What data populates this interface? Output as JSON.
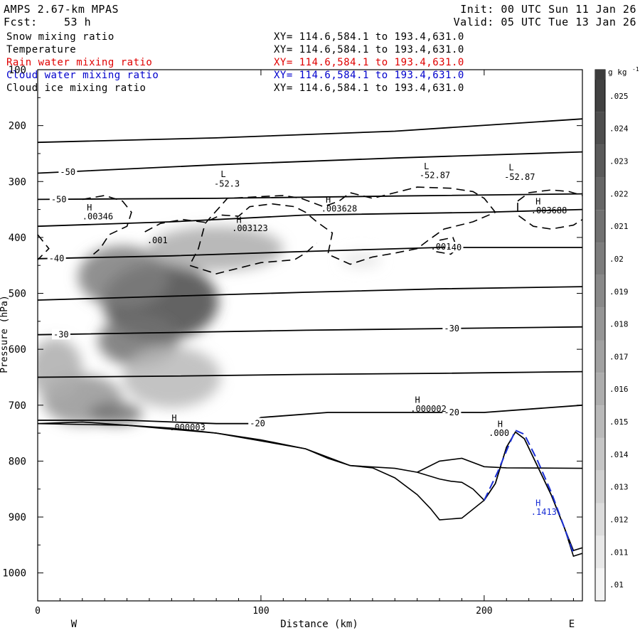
{
  "header": {
    "model": "AMPS 2.67-km MPAS",
    "forecast_label": "Fcst:",
    "forecast_value": "53 h",
    "init": "Init: 00 UTC Sun 11 Jan 26",
    "valid": "Valid: 05 UTC Tue 13 Jan 26"
  },
  "legend": [
    {
      "name": "Snow mixing ratio",
      "xy": "XY= 114.6,584.1 to 193.4,631.0",
      "color": "#000000"
    },
    {
      "name": "Temperature",
      "xy": "XY= 114.6,584.1 to 193.4,631.0",
      "color": "#000000"
    },
    {
      "name": "Rain water mixing ratio",
      "xy": "XY= 114.6,584.1 to 193.4,631.0",
      "color": "#e00000"
    },
    {
      "name": "Cloud water mixing ratio",
      "xy": "XY= 114.6,584.1 to 193.4,631.0",
      "color": "#0000cc"
    },
    {
      "name": "Cloud ice mixing ratio",
      "xy": "XY= 114.6,584.1 to 193.4,631.0",
      "color": "#000000"
    }
  ],
  "chart_data": {
    "type": "heatmap",
    "xlabel": "Distance (km)",
    "ylabel": "Pressure (hPa)",
    "xlim": [
      0,
      244
    ],
    "ylim": [
      1050,
      100
    ],
    "x_ticks": [
      0,
      100,
      200
    ],
    "y_ticks": [
      100,
      200,
      300,
      400,
      500,
      600,
      700,
      800,
      900,
      1000
    ],
    "x_end_labels": {
      "left": "W",
      "right": "E"
    },
    "colorbar": {
      "units": "g kg",
      "units_exp": "-1",
      "ticks": [
        ".01",
        ".011",
        ".012",
        ".013",
        ".014",
        ".015",
        ".016",
        ".017",
        ".018",
        ".019",
        ".02",
        ".021",
        ".022",
        ".023",
        ".024",
        ".025"
      ],
      "min": 0.0095,
      "max": 0.0255
    },
    "snow_blobs": [
      {
        "x": 55,
        "p": 515,
        "rx": 26,
        "rp": 70,
        "v": 0.0245
      },
      {
        "x": 38,
        "p": 470,
        "rx": 20,
        "rp": 55,
        "v": 0.02
      },
      {
        "x": 45,
        "p": 585,
        "rx": 18,
        "rp": 45,
        "v": 0.021
      },
      {
        "x": 80,
        "p": 420,
        "rx": 30,
        "rp": 40,
        "v": 0.016
      },
      {
        "x": 60,
        "p": 650,
        "rx": 22,
        "rp": 55,
        "v": 0.015
      },
      {
        "x": 20,
        "p": 690,
        "rx": 18,
        "rp": 45,
        "v": 0.018
      },
      {
        "x": 35,
        "p": 715,
        "rx": 12,
        "rp": 20,
        "v": 0.021
      },
      {
        "x": 8,
        "p": 635,
        "rx": 12,
        "rp": 55,
        "v": 0.016
      },
      {
        "x": 145,
        "p": 440,
        "rx": 9,
        "rp": 15,
        "v": 0.011
      }
    ],
    "temperature_isotherms": [
      {
        "label": "",
        "points": [
          [
            0,
            230
          ],
          [
            80,
            222
          ],
          [
            160,
            210
          ],
          [
            244,
            188
          ]
        ]
      },
      {
        "label": "-50",
        "label_x": 10,
        "points": [
          [
            0,
            285
          ],
          [
            80,
            270
          ],
          [
            160,
            258
          ],
          [
            244,
            247
          ]
        ]
      },
      {
        "label": "-50",
        "label_x": 6,
        "points": [
          [
            0,
            332
          ],
          [
            80,
            330
          ],
          [
            160,
            326
          ],
          [
            244,
            322
          ]
        ]
      },
      {
        "label": "",
        "points": [
          [
            0,
            380
          ],
          [
            60,
            372
          ],
          [
            120,
            360
          ],
          [
            200,
            355
          ],
          [
            244,
            350
          ]
        ]
      },
      {
        "label": "-40",
        "label_x": 5,
        "points": [
          [
            0,
            438
          ],
          [
            60,
            433
          ],
          [
            120,
            425
          ],
          [
            180,
            418
          ],
          [
            244,
            418
          ]
        ]
      },
      {
        "label": "-40",
        "label_x": 183,
        "points": []
      },
      {
        "label": "",
        "points": [
          [
            0,
            512
          ],
          [
            60,
            505
          ],
          [
            120,
            498
          ],
          [
            180,
            492
          ],
          [
            244,
            488
          ]
        ]
      },
      {
        "label": "-30",
        "label_x": 7,
        "points": [
          [
            0,
            574
          ],
          [
            60,
            570
          ],
          [
            120,
            566
          ],
          [
            180,
            563
          ],
          [
            244,
            560
          ]
        ]
      },
      {
        "label": "-30",
        "label_x": 182,
        "points": []
      },
      {
        "label": "",
        "points": [
          [
            0,
            650
          ],
          [
            60,
            648
          ],
          [
            120,
            645
          ],
          [
            180,
            643
          ],
          [
            244,
            640
          ]
        ]
      },
      {
        "label": "-20",
        "label_x": 95,
        "points": [
          [
            0,
            727
          ],
          [
            40,
            727
          ],
          [
            80,
            733
          ],
          [
            95,
            733
          ],
          [
            100,
            722
          ],
          [
            130,
            713
          ],
          [
            160,
            713
          ],
          [
            200,
            713
          ],
          [
            244,
            700
          ]
        ]
      },
      {
        "label": "-20",
        "label_x": 182,
        "points": []
      }
    ],
    "labels_other": [
      {
        "text": "L",
        "x": 82,
        "p": 292
      },
      {
        "text": "-52.3",
        "x": 79,
        "p": 309
      },
      {
        "text": "L",
        "x": 173,
        "p": 278
      },
      {
        "text": "-52.87",
        "x": 171,
        "p": 294
      },
      {
        "text": "L",
        "x": 211,
        "p": 280
      },
      {
        "text": "-52.87",
        "x": 209,
        "p": 297
      },
      {
        "text": "H",
        "x": 22,
        "p": 352
      },
      {
        "text": ".00346",
        "x": 20,
        "p": 368
      },
      {
        "text": "H",
        "x": 89,
        "p": 374
      },
      {
        "text": ".003123",
        "x": 87,
        "p": 389
      },
      {
        "text": "H",
        "x": 129,
        "p": 338
      },
      {
        "text": ".003628",
        "x": 127,
        "p": 354
      },
      {
        "text": "H",
        "x": 223,
        "p": 341
      },
      {
        "text": ".003688",
        "x": 221,
        "p": 357
      },
      {
        "text": ".001",
        "x": 49,
        "p": 410
      },
      {
        "text": ".001",
        "x": 176,
        "p": 422
      },
      {
        "text": "H",
        "x": 60,
        "p": 728
      },
      {
        "text": ".000003",
        "x": 59,
        "p": 745
      },
      {
        "text": "H",
        "x": 169,
        "p": 696
      },
      {
        "text": ".000002",
        "x": 167,
        "p": 712
      },
      {
        "text": "H",
        "x": 206,
        "p": 739
      },
      {
        "text": ".000",
        "x": 202,
        "p": 755
      },
      {
        "text": "H",
        "x": 223,
        "p": 880
      },
      {
        "text": ".1413",
        "x": 221,
        "p": 896
      }
    ],
    "terrain": {
      "surface": [
        [
          0,
          733
        ],
        [
          20,
          730
        ],
        [
          40,
          736
        ],
        [
          60,
          741
        ],
        [
          80,
          750
        ],
        [
          100,
          762
        ],
        [
          120,
          778
        ],
        [
          130,
          795
        ],
        [
          140,
          808
        ],
        [
          160,
          813
        ],
        [
          170,
          820
        ],
        [
          180,
          832
        ],
        [
          185,
          836
        ],
        [
          190,
          838
        ],
        [
          195,
          850
        ],
        [
          200,
          870
        ],
        [
          205,
          840
        ],
        [
          210,
          775
        ],
        [
          214,
          748
        ],
        [
          218,
          760
        ],
        [
          224,
          810
        ],
        [
          230,
          860
        ],
        [
          236,
          920
        ],
        [
          240,
          960
        ],
        [
          244,
          955
        ]
      ],
      "ridge": [
        [
          0,
          733
        ],
        [
          40,
          736
        ],
        [
          80,
          750
        ],
        [
          120,
          778
        ],
        [
          140,
          808
        ],
        [
          150,
          812
        ],
        [
          160,
          830
        ],
        [
          170,
          860
        ],
        [
          176,
          885
        ],
        [
          180,
          905
        ],
        [
          190,
          902
        ],
        [
          200,
          870
        ],
        [
          205,
          840
        ],
        [
          210,
          775
        ],
        [
          214,
          748
        ],
        [
          218,
          760
        ],
        [
          224,
          810
        ],
        [
          230,
          860
        ],
        [
          236,
          920
        ],
        [
          240,
          970
        ],
        [
          244,
          965
        ]
      ],
      "plateau": [
        [
          170,
          820
        ],
        [
          180,
          800
        ],
        [
          190,
          795
        ],
        [
          200,
          810
        ],
        [
          210,
          812
        ],
        [
          244,
          813
        ]
      ]
    }
  }
}
